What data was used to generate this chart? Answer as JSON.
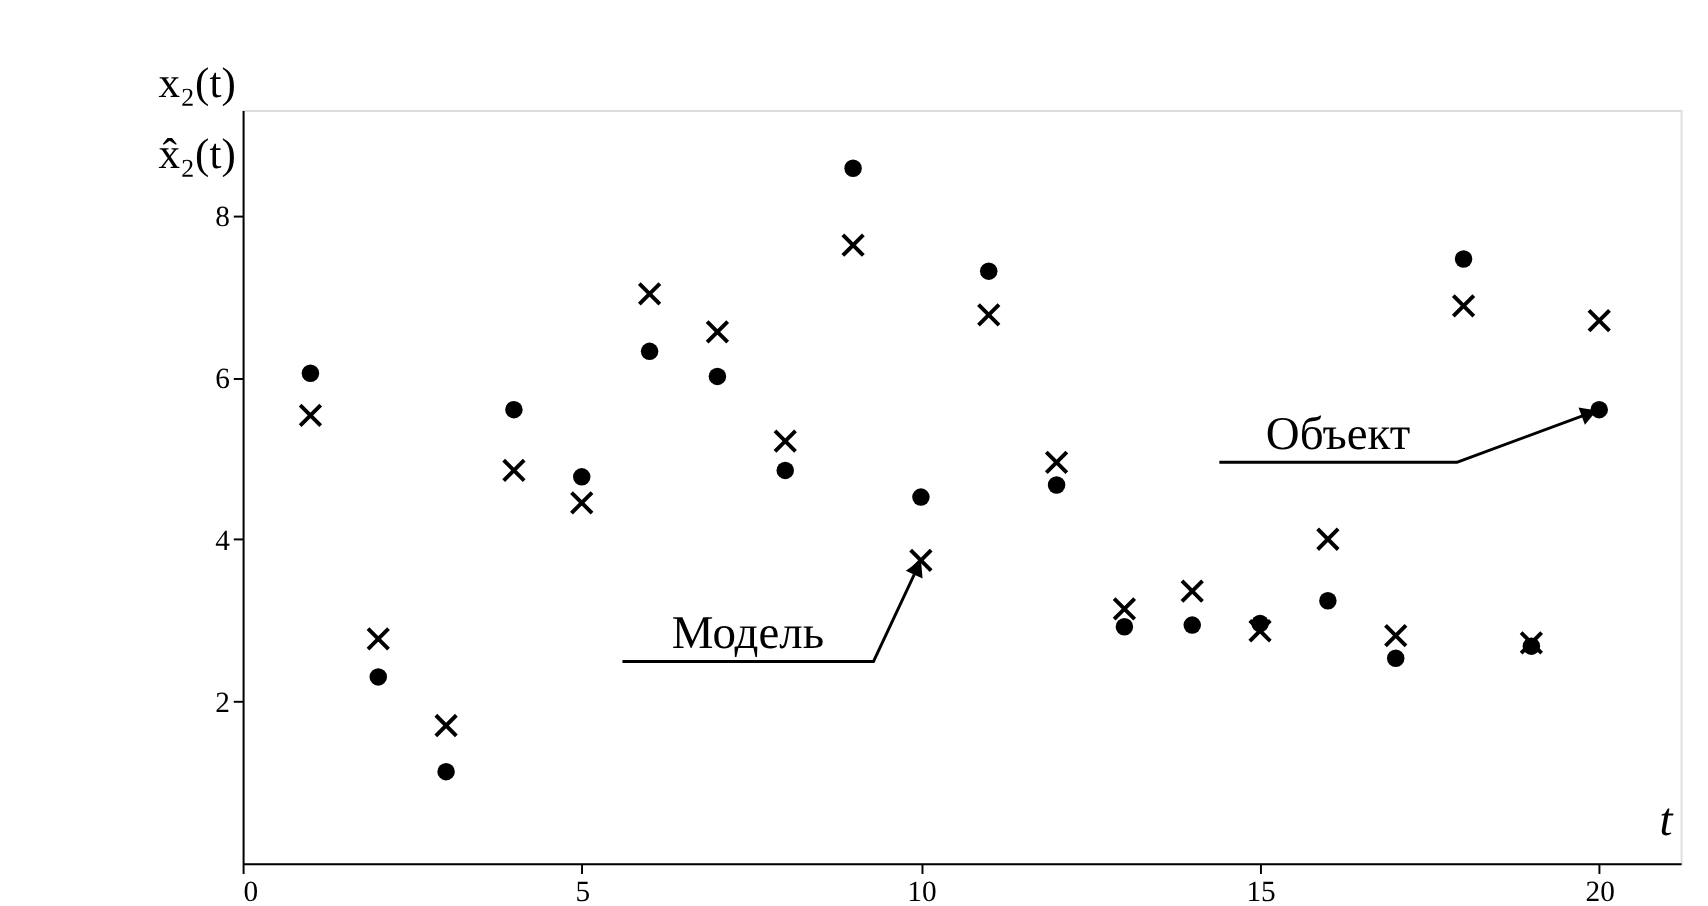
{
  "chart_data": {
    "type": "scatter",
    "xlabel": "t",
    "ylabel": "x₂(t)\nx̂₂(t)",
    "x": [
      1,
      2,
      3,
      4,
      5,
      6,
      7,
      8,
      9,
      10,
      11,
      12,
      13,
      14,
      15,
      16,
      17,
      18,
      19,
      20
    ],
    "series": [
      {
        "color": "#000000",
        "marker": "circle",
        "values": [
          6.05,
          2.3,
          1.13,
          5.6,
          4.77,
          6.32,
          6.01,
          4.85,
          8.58,
          4.52,
          7.31,
          4.67,
          2.92,
          2.94,
          2.96,
          3.24,
          2.53,
          7.46,
          2.68,
          5.6
        ]
      },
      {
        "color": "#000000",
        "marker": "cross",
        "values": [
          5.53,
          2.77,
          1.7,
          4.85,
          4.45,
          7.03,
          6.56,
          5.21,
          7.63,
          3.74,
          6.77,
          4.95,
          3.14,
          3.36,
          2.87,
          4.0,
          2.81,
          6.88,
          2.72,
          6.7
        ]
      }
    ],
    "xlim": [
      0,
      21.2
    ],
    "ylim": [
      0,
      9.3
    ],
    "xticks": [
      0,
      5,
      10,
      15,
      20
    ],
    "yticks": [
      2,
      4,
      6,
      8
    ],
    "grid": false,
    "annotations": [
      {
        "text": "Модель",
        "x": 10,
        "y": 3.74
      },
      {
        "text": "Объект",
        "x": 20,
        "y": 5.6
      }
    ]
  }
}
